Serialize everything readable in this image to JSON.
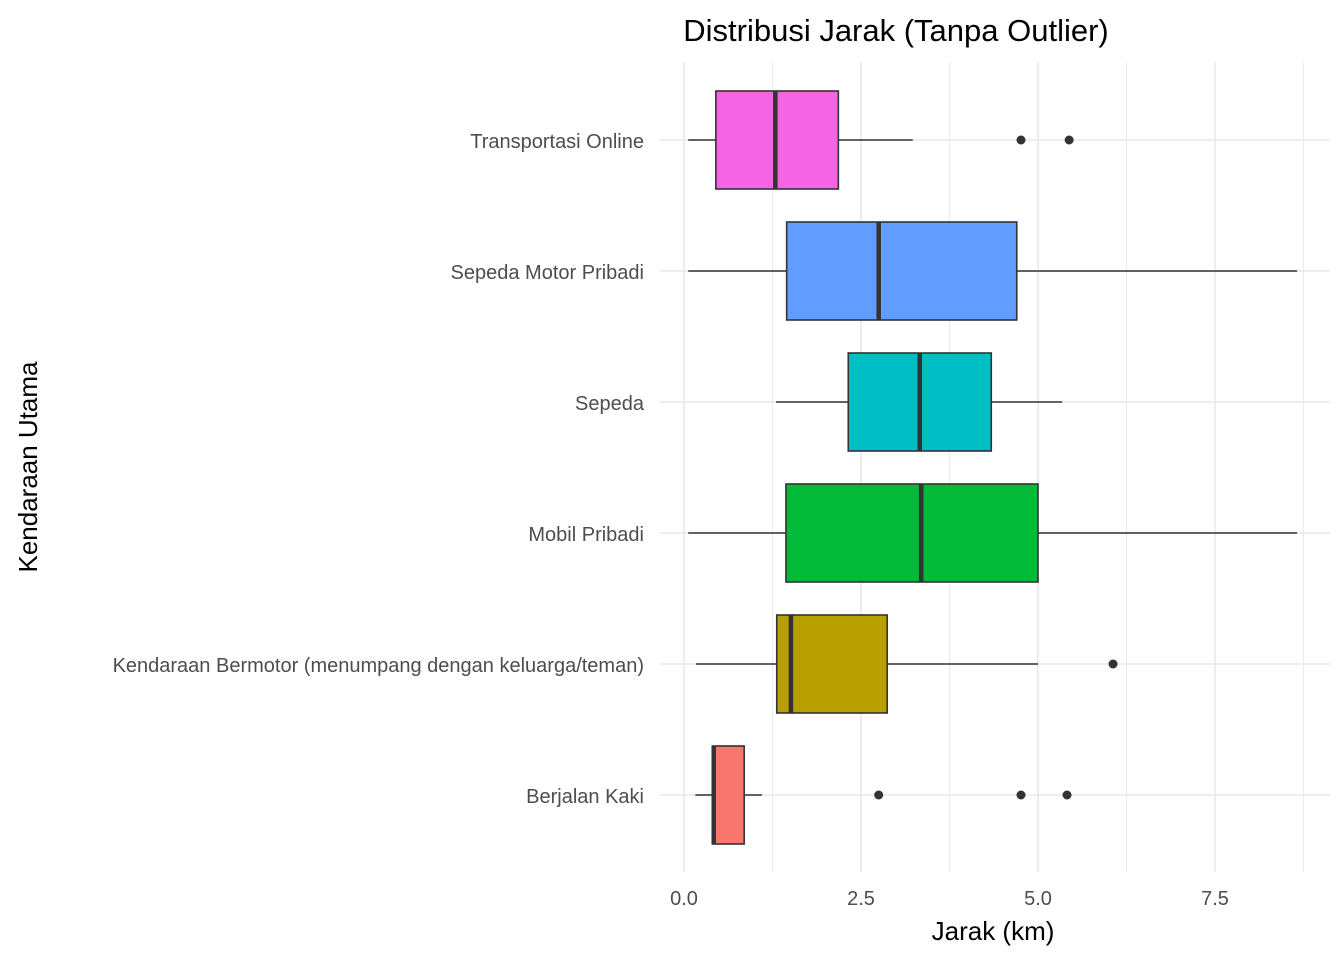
{
  "chart_data": {
    "type": "boxplot",
    "title": "Distribusi Jarak (Tanpa Outlier)",
    "xlabel": "Jarak (km)",
    "ylabel": "Kendaraan Utama",
    "xlim": [
      -0.35,
      9.1
    ],
    "x_ticks": [
      "0.0",
      "2.5",
      "5.0",
      "7.5"
    ],
    "x_tick_values": [
      0,
      2.5,
      5,
      7.5
    ],
    "grid": true,
    "categories": [
      {
        "name": "Transportasi Online",
        "color": "#F564E3",
        "whisker_low": 0.06,
        "q1": 0.45,
        "median": 1.29,
        "q3": 2.18,
        "whisker_high": 3.23,
        "outliers": [
          4.76,
          5.44
        ]
      },
      {
        "name": "Sepeda Motor Pribadi",
        "color": "#619CFF",
        "whisker_low": 0.06,
        "q1": 1.45,
        "median": 2.75,
        "q3": 4.7,
        "whisker_high": 8.66,
        "outliers": []
      },
      {
        "name": "Sepeda",
        "color": "#00BFC4",
        "whisker_low": 1.3,
        "q1": 2.32,
        "median": 3.33,
        "q3": 4.34,
        "whisker_high": 5.34,
        "outliers": []
      },
      {
        "name": "Mobil Pribadi",
        "color": "#00BA38",
        "whisker_low": 0.06,
        "q1": 1.44,
        "median": 3.35,
        "q3": 5.0,
        "whisker_high": 8.66,
        "outliers": []
      },
      {
        "name": "Kendaraan Bermotor (menumpang dengan keluarga/teman)",
        "color": "#B79F00",
        "whisker_low": 0.17,
        "q1": 1.31,
        "median": 1.51,
        "q3": 2.87,
        "whisker_high": 5.0,
        "outliers": [
          6.06
        ]
      },
      {
        "name": "Berjalan Kaki",
        "color": "#F8766D",
        "whisker_low": 0.16,
        "q1": 0.4,
        "median": 0.42,
        "q3": 0.85,
        "whisker_high": 1.1,
        "outliers": [
          2.75,
          4.76,
          5.41
        ]
      }
    ]
  }
}
